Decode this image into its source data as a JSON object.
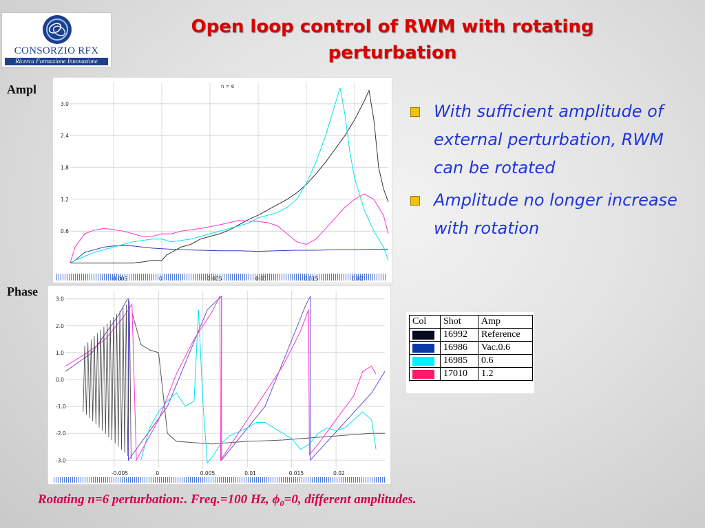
{
  "logo": {
    "name": "CONSORZIO RFX",
    "tagline": "Ricerca Formazione Innovazione",
    "emblem_icon": "rfx-emblem-icon"
  },
  "title": {
    "line1": "Open loop control of RWM with rotating",
    "line2": "perturbation"
  },
  "side_labels": {
    "ampl": "Ampl",
    "phase": "Phase"
  },
  "bullets": [
    {
      "text": "With sufficient amplitude of external perturbation, RWM can be rotated"
    },
    {
      "text": "Amplitude no longer increase with rotation"
    }
  ],
  "legend": {
    "headers": [
      "Col",
      "Shot",
      "Amp"
    ],
    "rows": [
      {
        "color": "#0a0a1e",
        "shot": "16992",
        "amp": "Reference"
      },
      {
        "color": "#0b3aa8",
        "shot": "16986",
        "amp": "Vac.0.6"
      },
      {
        "color": "#00f0ff",
        "shot": "16985",
        "amp": "0.6"
      },
      {
        "color": "#ff1a6b",
        "shot": "17010",
        "amp": "1.2"
      }
    ]
  },
  "caption": {
    "before_phi": "Rotating n=6 perturbation:. Freq.=100 Hz, ",
    "phi_symbol": "ϕ",
    "phi_subscript": "0",
    "after_phi": "=0, different amplitudes."
  },
  "chart_data": [
    {
      "type": "line",
      "annotation": "n = 6",
      "xlim": [
        -0.0095,
        0.0235
      ],
      "ylim": [
        -0.2,
        3.4
      ],
      "x_ticks": [
        "-0.005",
        "0",
        "0.005",
        "0.01",
        "0.015",
        "0.02"
      ],
      "y_ticks": [
        "3.0",
        "2.4",
        "1.8",
        "1.2",
        "0.6"
      ],
      "grid": true,
      "series": [
        {
          "color": "#333333",
          "x": [
            -0.0095,
            -0.009,
            -0.008,
            -0.007,
            -0.006,
            -0.005,
            -0.004,
            -0.003,
            -0.002,
            -0.001,
            0,
            0.0005,
            0.001,
            0.002,
            0.003,
            0.004,
            0.005,
            0.006,
            0.007,
            0.008,
            0.009,
            0.01,
            0.011,
            0.012,
            0.013,
            0.014,
            0.015,
            0.016,
            0.017,
            0.018,
            0.019,
            0.02,
            0.021,
            0.0215,
            0.022,
            0.0225,
            0.023,
            0.0235
          ],
          "y": [
            0,
            0,
            0,
            0,
            0,
            0,
            0,
            0,
            0.02,
            0.05,
            0.05,
            0.15,
            0.2,
            0.3,
            0.35,
            0.45,
            0.5,
            0.55,
            0.62,
            0.72,
            0.82,
            0.9,
            1.0,
            1.1,
            1.2,
            1.32,
            1.48,
            1.68,
            1.9,
            2.15,
            2.4,
            2.7,
            3.05,
            3.25,
            2.7,
            1.8,
            1.4,
            1.15
          ]
        },
        {
          "color": "#2a3fc0",
          "x": [
            -0.0095,
            -0.009,
            -0.008,
            -0.007,
            -0.006,
            -0.005,
            -0.004,
            -0.003,
            -0.002,
            -0.001,
            0,
            0.002,
            0.004,
            0.006,
            0.008,
            0.01,
            0.012,
            0.014,
            0.016,
            0.018,
            0.02,
            0.022,
            0.0235
          ],
          "y": [
            0,
            0.05,
            0.2,
            0.25,
            0.3,
            0.32,
            0.33,
            0.32,
            0.3,
            0.28,
            0.27,
            0.25,
            0.24,
            0.23,
            0.23,
            0.22,
            0.23,
            0.24,
            0.24,
            0.25,
            0.25,
            0.26,
            0.26
          ]
        },
        {
          "color": "#00e5f0",
          "x": [
            -0.0095,
            -0.009,
            -0.007,
            -0.005,
            -0.003,
            -0.001,
            0,
            0.001,
            0.003,
            0.005,
            0.007,
            0.009,
            0.01,
            0.011,
            0.012,
            0.013,
            0.014,
            0.015,
            0.016,
            0.017,
            0.018,
            0.0185,
            0.019,
            0.0195,
            0.02,
            0.021,
            0.022,
            0.023,
            0.0235
          ],
          "y": [
            0,
            0.05,
            0.2,
            0.3,
            0.4,
            0.45,
            0.45,
            0.4,
            0.45,
            0.55,
            0.65,
            0.75,
            0.85,
            0.9,
            0.95,
            1.05,
            1.2,
            1.5,
            1.9,
            2.4,
            3.0,
            3.3,
            2.8,
            2.1,
            1.6,
            1.0,
            0.6,
            0.3,
            0.05
          ]
        },
        {
          "color": "#ff33cc",
          "x": [
            -0.0095,
            -0.009,
            -0.008,
            -0.007,
            -0.006,
            -0.005,
            -0.004,
            -0.003,
            -0.002,
            -0.001,
            0,
            0.001,
            0.002,
            0.004,
            0.006,
            0.008,
            0.01,
            0.011,
            0.012,
            0.013,
            0.014,
            0.015,
            0.016,
            0.017,
            0.018,
            0.019,
            0.02,
            0.021,
            0.022,
            0.023,
            0.0235
          ],
          "y": [
            0,
            0.3,
            0.55,
            0.62,
            0.65,
            0.63,
            0.6,
            0.55,
            0.5,
            0.5,
            0.55,
            0.55,
            0.6,
            0.65,
            0.72,
            0.8,
            0.78,
            0.76,
            0.7,
            0.55,
            0.4,
            0.35,
            0.45,
            0.65,
            0.85,
            1.05,
            1.2,
            1.3,
            1.2,
            0.9,
            0.55
          ]
        }
      ]
    },
    {
      "type": "line",
      "xlim": [
        -0.0105,
        0.0255
      ],
      "ylim": [
        -3.3,
        3.3
      ],
      "x_ticks": [
        "-0.005",
        "0",
        "0.005",
        "0.01",
        "0.015",
        "0.02"
      ],
      "y_ticks": [
        "3.0",
        "2.0",
        "1.0",
        "0.0",
        "-1.0",
        "-2.0",
        "-3.0"
      ],
      "grid": true,
      "series": [
        {
          "color": "#555555",
          "x": [
            -0.003,
            -0.002,
            -0.001,
            0,
            0.001,
            0.002,
            0.004,
            0.006,
            0.008,
            0.01,
            0.012,
            0.014,
            0.016,
            0.018,
            0.02,
            0.022,
            0.024,
            0.0255
          ],
          "y": [
            2.5,
            1.3,
            1.1,
            1.0,
            -2.0,
            -2.3,
            -2.35,
            -2.4,
            -2.35,
            -2.3,
            -2.28,
            -2.25,
            -2.2,
            -2.15,
            -2.1,
            -2.05,
            -2.0,
            -2.0
          ]
        },
        {
          "color": "#6a4fd8",
          "x": [
            -0.0105,
            -0.0075,
            -0.0045,
            -0.0035,
            -0.0034,
            -0.0034,
            0.001,
            0.0055,
            0.0071,
            0.0071,
            0.012,
            0.0165,
            0.0171,
            0.0171,
            0.024,
            0.0255
          ],
          "y": [
            0.3,
            1.0,
            2.4,
            3.0,
            3.0,
            -3.0,
            -1.0,
            2.6,
            3.1,
            -3.0,
            -1.0,
            2.7,
            3.1,
            -3.0,
            -0.5,
            0.3
          ]
        },
        {
          "color": "#00e5f0",
          "x": [
            -0.002,
            -0.001,
            0,
            0.001,
            0.002,
            0.003,
            0.004,
            0.0045,
            0.005,
            0.0055,
            0.006,
            0.007,
            0.008,
            0.01,
            0.011,
            0.012,
            0.013,
            0.014,
            0.015,
            0.016,
            0.017,
            0.018,
            0.019,
            0.02,
            0.021,
            0.022,
            0.023,
            0.024,
            0.0245
          ],
          "y": [
            -3.0,
            -1.8,
            -1.2,
            -0.8,
            -0.5,
            -1.0,
            -0.8,
            2.6,
            -0.9,
            -3.1,
            -2.9,
            -2.4,
            -2.1,
            -1.8,
            -1.6,
            -1.6,
            -1.8,
            -2.0,
            -2.2,
            -2.6,
            -2.4,
            -2.0,
            -1.8,
            -1.9,
            -1.8,
            -1.5,
            -1.2,
            -1.5,
            -2.6
          ]
        },
        {
          "color": "#ff33cc",
          "x": [
            -0.0105,
            -0.008,
            -0.006,
            -0.004,
            -0.003,
            -0.0025,
            0,
            0.002,
            0.004,
            0.006,
            0.0069,
            0.007,
            0.008,
            0.01,
            0.012,
            0.014,
            0.016,
            0.0169,
            0.017,
            0.018,
            0.02,
            0.022,
            0.023,
            0.024,
            0.0245
          ],
          "y": [
            0.5,
            1.0,
            1.5,
            2.3,
            2.8,
            -3.0,
            -1.5,
            0.2,
            1.5,
            2.5,
            3.1,
            -3.0,
            -2.5,
            -1.5,
            -0.5,
            0.5,
            1.8,
            2.6,
            -2.8,
            -2.4,
            -1.5,
            -0.6,
            0.3,
            0.5,
            0.2
          ]
        }
      ]
    }
  ]
}
